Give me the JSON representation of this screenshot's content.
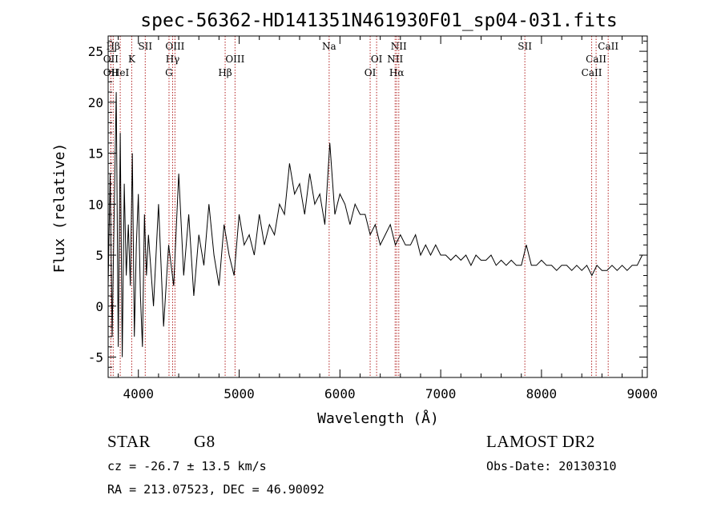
{
  "chart_data": {
    "type": "line",
    "title": "spec-56362-HD141351N461930F01_sp04-031.fits",
    "xlabel": "Wavelength (Å)",
    "ylabel": "Flux (relative)",
    "xlim": [
      3700,
      9050
    ],
    "ylim": [
      -7,
      26.5
    ],
    "xticks": [
      4000,
      5000,
      6000,
      7000,
      8000,
      9000
    ],
    "yticks": [
      -5,
      0,
      5,
      10,
      15,
      20,
      25
    ],
    "grid": false,
    "line_color": "#000000",
    "marker_color": "#b22222",
    "series": [
      {
        "x": [
          3700,
          3720,
          3740,
          3760,
          3780,
          3800,
          3820,
          3840,
          3860,
          3880,
          3900,
          3920,
          3940,
          3960,
          3980,
          4000,
          4020,
          4040,
          4060,
          4080,
          4100,
          4150,
          4200,
          4250,
          4300,
          4350,
          4400,
          4450,
          4500,
          4550,
          4600,
          4650,
          4700,
          4750,
          4800,
          4850,
          4900,
          4950,
          5000,
          5050,
          5100,
          5150,
          5200,
          5250,
          5300,
          5350,
          5400,
          5450,
          5500,
          5550,
          5600,
          5650,
          5700,
          5750,
          5800,
          5850,
          5900,
          5950,
          6000,
          6050,
          6100,
          6150,
          6200,
          6250,
          6300,
          6350,
          6400,
          6450,
          6500,
          6550,
          6600,
          6650,
          6700,
          6750,
          6800,
          6850,
          6900,
          6950,
          7000,
          7050,
          7100,
          7150,
          7200,
          7250,
          7300,
          7350,
          7400,
          7450,
          7500,
          7550,
          7600,
          7650,
          7700,
          7750,
          7800,
          7850,
          7900,
          7950,
          8000,
          8050,
          8100,
          8150,
          8200,
          8250,
          8300,
          8350,
          8400,
          8450,
          8500,
          8550,
          8600,
          8650,
          8700,
          8750,
          8800,
          8850,
          8900,
          8950,
          9000
        ],
        "y": [
          2,
          13,
          -3,
          9,
          21,
          -4,
          17,
          -5,
          12,
          3,
          8,
          2,
          15,
          -3,
          6,
          11,
          1,
          -4,
          9,
          3,
          7,
          0,
          10,
          -2,
          6,
          2,
          13,
          3,
          9,
          1,
          7,
          4,
          10,
          5,
          2,
          8,
          5,
          3,
          9,
          6,
          7,
          5,
          9,
          6,
          8,
          7,
          10,
          9,
          14,
          11,
          12,
          9,
          13,
          10,
          11,
          8,
          16,
          9,
          11,
          10,
          8,
          10,
          9,
          9,
          7,
          8,
          6,
          7,
          8,
          6,
          7,
          6,
          6,
          7,
          5,
          6,
          5,
          6,
          5,
          5,
          4.5,
          5,
          4.5,
          5,
          4,
          5,
          4.5,
          4.5,
          5,
          4,
          4.5,
          4,
          4.5,
          4,
          4,
          6,
          4,
          4,
          4.5,
          4,
          4,
          3.5,
          4,
          4,
          3.5,
          4,
          3.5,
          4,
          3,
          4,
          3.5,
          3.5,
          4,
          3.5,
          4,
          3.5,
          4,
          4,
          5
        ]
      }
    ],
    "line_markers": [
      {
        "label": "Hβ",
        "x": 3750,
        "row": 1
      },
      {
        "label": "OII",
        "x": 3727,
        "row": 2
      },
      {
        "label": "OII",
        "x": 3727,
        "row": 3
      },
      {
        "label": "HeI",
        "x": 3820,
        "row": 3
      },
      {
        "label": "K",
        "x": 3934,
        "row": 2
      },
      {
        "label": "SII",
        "x": 4068,
        "row": 1
      },
      {
        "label": "OIII",
        "x": 4363,
        "row": 1
      },
      {
        "label": "Hγ",
        "x": 4340,
        "row": 2
      },
      {
        "label": "G",
        "x": 4304,
        "row": 3
      },
      {
        "label": "Hβ",
        "x": 4861,
        "row": 3
      },
      {
        "label": "OIII",
        "x": 4959,
        "row": 2
      },
      {
        "label": "Na",
        "x": 5893,
        "row": 1
      },
      {
        "label": "OI",
        "x": 6364,
        "row": 2
      },
      {
        "label": "OI",
        "x": 6300,
        "row": 3
      },
      {
        "label": "NII",
        "x": 6584,
        "row": 1
      },
      {
        "label": "NII",
        "x": 6548,
        "row": 2
      },
      {
        "label": "Hα",
        "x": 6563,
        "row": 3
      },
      {
        "label": "SII",
        "x": 7835,
        "row": 1
      },
      {
        "label": "CaII",
        "x": 8662,
        "row": 1
      },
      {
        "label": "CaII",
        "x": 8542,
        "row": 2
      },
      {
        "label": "CaII",
        "x": 8498,
        "row": 3
      }
    ]
  },
  "info": {
    "object_class": "STAR",
    "subclass": "G8",
    "survey": "LAMOST DR2",
    "cz": "cz = -26.7 ± 13.5 km/s",
    "obs_date": "Obs-Date: 20130310",
    "coords": "RA = 213.07523, DEC =  46.90092"
  }
}
